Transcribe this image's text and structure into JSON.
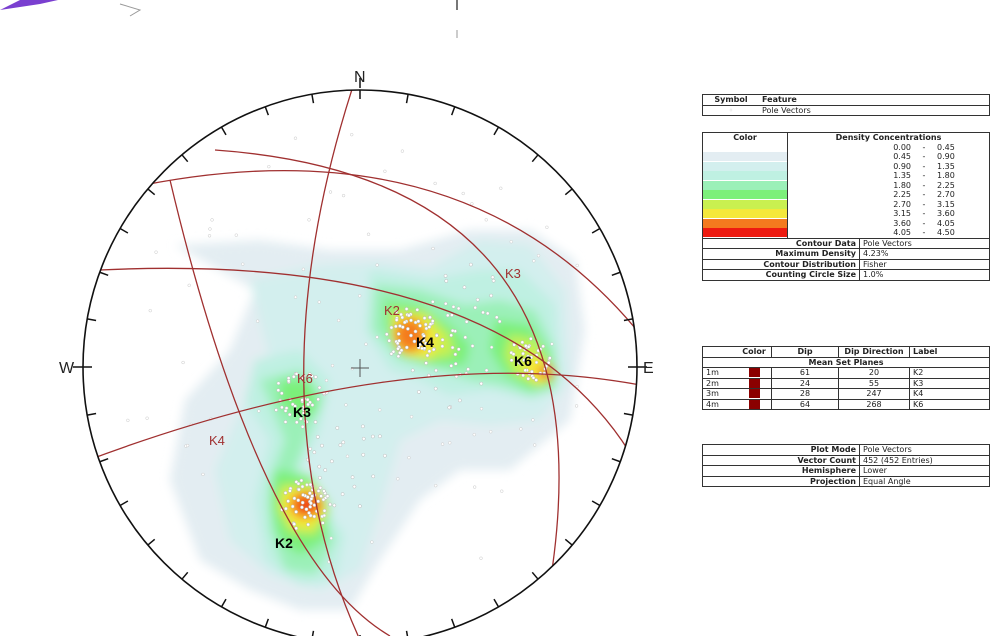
{
  "chart_data": {
    "type": "stereonet",
    "directions": {
      "north": "N",
      "east": "E",
      "west": "W"
    },
    "projection": "Equal Angle",
    "hemisphere": "Lower",
    "plot_mode": "Pole Vectors",
    "vector_count": "452 (452 Entries)",
    "max_density": "4.23%",
    "set_planes": [
      {
        "id": "1m",
        "dip": 61,
        "dip_direction": 20,
        "label": "K2"
      },
      {
        "id": "2m",
        "dip": 24,
        "dip_direction": 55,
        "label": "K3"
      },
      {
        "id": "3m",
        "dip": 28,
        "dip_direction": 247,
        "label": "K4"
      },
      {
        "id": "4m",
        "dip": 64,
        "dip_direction": 268,
        "label": "K6"
      }
    ],
    "great_circle_labels": [
      "K3",
      "K2",
      "K6",
      "K4"
    ],
    "cluster_labels": [
      "K4",
      "K6",
      "K3",
      "K2"
    ],
    "density_bins": [
      {
        "from": "0.00",
        "to": "0.45",
        "color": "#ffffff"
      },
      {
        "from": "0.45",
        "to": "0.90",
        "color": "#e3edf2"
      },
      {
        "from": "0.90",
        "to": "1.35",
        "color": "#d3efee"
      },
      {
        "from": "1.35",
        "to": "1.80",
        "color": "#bff0e2"
      },
      {
        "from": "1.80",
        "to": "2.25",
        "color": "#9bf0b8"
      },
      {
        "from": "2.25",
        "to": "2.70",
        "color": "#7cf07a"
      },
      {
        "from": "2.70",
        "to": "3.15",
        "color": "#c9f050"
      },
      {
        "from": "3.15",
        "to": "3.60",
        "color": "#f5e83a"
      },
      {
        "from": "3.60",
        "to": "4.05",
        "color": "#f47a1e"
      },
      {
        "from": "4.05",
        "to": "4.50",
        "color": "#ee1a10"
      }
    ]
  },
  "legend": {
    "symbol_header": "Symbol",
    "feature_header": "Feature",
    "feature_value": "Pole Vectors",
    "color_header": "Color",
    "density_header": "Density Concentrations",
    "sep": "-",
    "contour_data_label": "Contour Data",
    "contour_data_value": "Pole Vectors",
    "max_density_label": "Maximum Density",
    "max_density_value": "4.23%",
    "contour_dist_label": "Contour Distribution",
    "contour_dist_value": "Fisher",
    "counting_label": "Counting Circle Size",
    "counting_value": "1.0%",
    "sets_headers": {
      "color": "Color",
      "dip": "Dip",
      "dipdir": "Dip Direction",
      "label": "Label"
    },
    "mean_set_title": "Mean Set Planes",
    "plot_mode_label": "Plot Mode",
    "plot_mode_value": "Pole Vectors",
    "vector_count_label": "Vector Count",
    "vector_count_value": "452 (452 Entries)",
    "hemisphere_label": "Hemisphere",
    "hemisphere_value": "Lower",
    "projection_label": "Projection",
    "projection_value": "Equal Angle"
  }
}
